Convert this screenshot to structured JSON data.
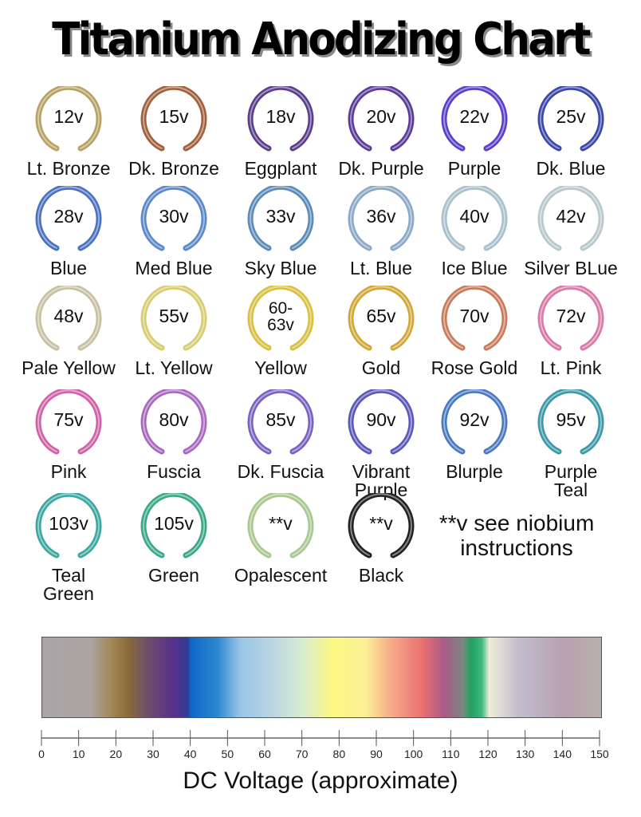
{
  "title": "Titanium Anodizing Chart",
  "swatches": [
    {
      "voltage": "12v",
      "name": "Lt. Bronze",
      "color": "#b8a062"
    },
    {
      "voltage": "15v",
      "name": "Dk. Bronze",
      "color": "#a0603a"
    },
    {
      "voltage": "18v",
      "name": "Eggplant",
      "color": "#5a3c8a"
    },
    {
      "voltage": "20v",
      "name": "Dk. Purple",
      "color": "#5a3a9a"
    },
    {
      "voltage": "22v",
      "name": "Purple",
      "color": "#5a3ec8"
    },
    {
      "voltage": "25v",
      "name": "Dk. Blue",
      "color": "#3a46a8"
    },
    {
      "voltage": "28v",
      "name": "Blue",
      "color": "#4a70c0"
    },
    {
      "voltage": "30v",
      "name": "Med Blue",
      "color": "#5a88c8"
    },
    {
      "voltage": "33v",
      "name": "Sky Blue",
      "color": "#5a8ab8"
    },
    {
      "voltage": "36v",
      "name": "Lt. Blue",
      "color": "#8aa8c8"
    },
    {
      "voltage": "40v",
      "name": "Ice Blue",
      "color": "#a8c0cc"
    },
    {
      "voltage": "42v",
      "name": "Silver BLue",
      "color": "#b8c8cc"
    },
    {
      "voltage": "48v",
      "name": "Pale Yellow",
      "color": "#c8c0a0"
    },
    {
      "voltage": "55v",
      "name": "Lt. Yellow",
      "color": "#d8cc70"
    },
    {
      "voltage": "60-\n63v",
      "name": "Yellow",
      "color": "#d8c040"
    },
    {
      "voltage": "65v",
      "name": "Gold",
      "color": "#d0a838"
    },
    {
      "voltage": "70v",
      "name": "Rose Gold",
      "color": "#c87a5a"
    },
    {
      "voltage": "72v",
      "name": "Lt. Pink",
      "color": "#d87aa8"
    },
    {
      "voltage": "75v",
      "name": "Pink",
      "color": "#d060a8"
    },
    {
      "voltage": "80v",
      "name": "Fuscia",
      "color": "#a868c0"
    },
    {
      "voltage": "85v",
      "name": "Dk. Fuscia",
      "color": "#7a60c0"
    },
    {
      "voltage": "90v",
      "name": "Vibrant\nPurple",
      "color": "#5a58b8"
    },
    {
      "voltage": "92v",
      "name": "Blurple",
      "color": "#4a78c0"
    },
    {
      "voltage": "95v",
      "name": "Purple\nTeal",
      "color": "#3a98a8"
    },
    {
      "voltage": "103v",
      "name": "Teal\nGreen",
      "color": "#3aa8a0"
    },
    {
      "voltage": "105v",
      "name": "Green",
      "color": "#3aa888"
    },
    {
      "voltage": "**v",
      "name": "Opalescent",
      "color": "#a8c890"
    },
    {
      "voltage": "**v",
      "name": "Black",
      "color": "#222222"
    }
  ],
  "note": "**v see niobium instructions",
  "spectrum": {
    "stops": [
      {
        "v": 0,
        "color": "#a9a5a8"
      },
      {
        "v": 13,
        "color": "#aaa4a2"
      },
      {
        "v": 18,
        "color": "#a58a5e"
      },
      {
        "v": 23,
        "color": "#8a6a38"
      },
      {
        "v": 28,
        "color": "#705068"
      },
      {
        "v": 35,
        "color": "#58308a"
      },
      {
        "v": 39,
        "color": "#303a98"
      },
      {
        "v": 40,
        "color": "#1068c8"
      },
      {
        "v": 47,
        "color": "#2a88d0"
      },
      {
        "v": 53,
        "color": "#98c4e8"
      },
      {
        "v": 62,
        "color": "#bcd6e4"
      },
      {
        "v": 70,
        "color": "#d8ecd0"
      },
      {
        "v": 78,
        "color": "#fcf880"
      },
      {
        "v": 87,
        "color": "#fcee98"
      },
      {
        "v": 94,
        "color": "#f4a888"
      },
      {
        "v": 102,
        "color": "#ec7070"
      },
      {
        "v": 108,
        "color": "#a85a88"
      },
      {
        "v": 113,
        "color": "#7a8a80"
      },
      {
        "v": 115,
        "color": "#20a060"
      },
      {
        "v": 118,
        "color": "#40b880"
      },
      {
        "v": 120,
        "color": "#f0ecd8"
      },
      {
        "v": 128,
        "color": "#c0bccc"
      },
      {
        "v": 140,
        "color": "#b8a0b0"
      },
      {
        "v": 150,
        "color": "#b8b0a8"
      }
    ]
  },
  "axis": {
    "min": 0,
    "max": 150,
    "ticks": [
      "0",
      "10",
      "20",
      "30",
      "40",
      "50",
      "60",
      "70",
      "80",
      "90",
      "100",
      "110",
      "120",
      "130",
      "140",
      "150"
    ],
    "label": "DC Voltage (approximate)"
  }
}
